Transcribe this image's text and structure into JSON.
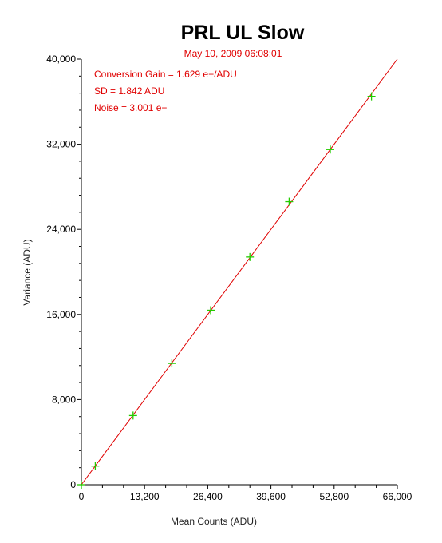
{
  "chart_data": {
    "type": "scatter",
    "title": "PRL UL Slow",
    "subtitle": "May 10, 2009  06:08:01",
    "xlabel": "Mean Counts (ADU)",
    "ylabel": "Variance (ADU)",
    "xlim": [
      0,
      66000
    ],
    "ylim": [
      0,
      40000
    ],
    "x_ticks": [
      "0",
      "13,200",
      "26,400",
      "39,600",
      "52,800",
      "66,000"
    ],
    "y_ticks": [
      "0",
      "8,000",
      "16,000",
      "24,000",
      "32,000",
      "40,000"
    ],
    "x_tick_values": [
      0,
      13200,
      26400,
      39600,
      52800,
      66000
    ],
    "y_tick_values": [
      0,
      8000,
      16000,
      24000,
      32000,
      40000
    ],
    "annotations": [
      "Conversion Gain = 1.629 e−/ADU",
      "SD = 1.842 ADU",
      "Noise = 3.001 e−"
    ],
    "points": [
      {
        "x": 0,
        "y": 0
      },
      {
        "x": 2900,
        "y": 1750
      },
      {
        "x": 10800,
        "y": 6500
      },
      {
        "x": 18900,
        "y": 11400
      },
      {
        "x": 27000,
        "y": 16400
      },
      {
        "x": 35200,
        "y": 21400
      },
      {
        "x": 43400,
        "y": 26600
      },
      {
        "x": 52000,
        "y": 31500
      },
      {
        "x": 60600,
        "y": 36500
      }
    ],
    "fit_line": {
      "x": [
        0,
        66000
      ],
      "y": [
        0,
        40000
      ]
    },
    "grid": false,
    "colors": {
      "points": "#22cc00",
      "fit_line": "#e00000",
      "annotations": "#e00000",
      "axes": "#000000"
    }
  }
}
